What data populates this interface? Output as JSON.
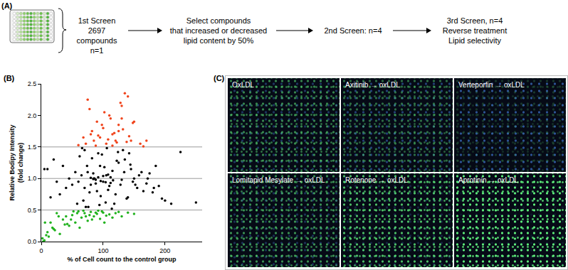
{
  "flowchart": {
    "label": "(A)",
    "steps": [
      [
        "1st Screen",
        "2697 compounds",
        "n=1"
      ],
      [
        "Select compounds",
        "that increased or decreased",
        "lipid content by 50%"
      ],
      [
        "2nd Screen: n=4"
      ],
      [
        "3rd Screen, n=4",
        "Reverse treatment",
        "Lipid selectivity"
      ]
    ]
  },
  "chart_data": {
    "panel_label": "(B)",
    "type": "scatter",
    "marker": "circle",
    "x_label": "% of Cell count to the control group",
    "y_label": "Relative Bodipy Intensity\n(fold change)",
    "xlim": [
      0,
      260
    ],
    "xticks": [
      0,
      100,
      200
    ],
    "ylim": [
      0,
      2.5
    ],
    "yticks": [
      {
        "value": 0,
        "label": "0.0"
      },
      0.5,
      {
        "value": 1,
        "label": "1.0"
      },
      1.5,
      {
        "value": 2,
        "label": "2.0"
      },
      2.5
    ],
    "reference_lines": [
      0.5,
      1,
      1.5
    ],
    "grid": false,
    "series": [
      {
        "color": "#000000",
        "x": [
          60,
          65,
          70,
          75,
          80,
          85,
          90,
          95,
          100,
          105,
          110,
          115,
          120,
          125,
          130,
          135,
          140,
          145,
          150,
          155,
          62,
          68,
          74,
          78,
          84,
          88,
          92,
          96,
          102,
          108,
          112,
          118,
          122,
          128,
          134,
          138,
          144,
          148,
          158,
          165,
          70,
          76,
          82,
          86,
          94,
          98,
          104,
          106,
          114,
          124,
          50,
          55,
          45,
          40,
          35,
          30,
          25,
          20,
          15,
          10,
          170,
          175,
          180,
          185,
          190,
          195,
          200,
          210,
          225,
          250,
          88,
          92,
          96,
          100,
          104,
          108,
          112,
          80,
          84,
          116,
          5,
          58,
          66,
          72,
          132,
          142,
          152,
          162,
          172,
          182
        ],
        "values": [
          0.95,
          1.05,
          0.85,
          1.1,
          0.9,
          1.0,
          0.8,
          1.2,
          0.95,
          1.05,
          0.88,
          1.12,
          0.75,
          1.25,
          0.98,
          1.3,
          0.7,
          1.15,
          1.0,
          0.85,
          1.35,
          0.65,
          1.2,
          0.78,
          1.08,
          0.92,
          1.4,
          0.72,
          1.18,
          0.82,
          1.02,
          0.6,
          1.28,
          0.9,
          1.1,
          0.68,
          1.22,
          0.95,
          1.05,
          0.8,
          1.45,
          0.55,
          1.32,
          1.0,
          0.58,
          1.38,
          0.62,
          1.48,
          0.52,
          1.42,
          0.9,
          1.1,
          1.0,
          0.85,
          1.2,
          0.75,
          0.95,
          1.3,
          0.7,
          1.15,
          0.92,
          1.08,
          0.78,
          1.2,
          0.88,
          0.68,
          0.65,
          0.6,
          1.42,
          0.62,
          0.98,
          1.02,
          0.96,
          1.04,
          0.94,
          1.06,
          0.93,
          1.01,
          0.99,
          0.97,
          1.15,
          0.6,
          1.48,
          0.55,
          1.45,
          1.4,
          0.9,
          1.1,
          1.0,
          0.85
        ]
      },
      {
        "color": "#f0441c",
        "x": [
          72,
          80,
          85,
          90,
          95,
          100,
          105,
          110,
          115,
          120,
          125,
          130,
          135,
          140,
          145,
          150,
          160,
          165,
          75,
          88,
          98,
          108,
          118,
          128,
          138,
          92,
          102,
          112,
          122,
          132,
          60,
          68,
          78,
          82,
          115,
          125,
          170,
          142,
          148,
          130
        ],
        "values": [
          1.55,
          1.7,
          1.6,
          1.9,
          1.65,
          1.8,
          1.55,
          2.0,
          1.7,
          1.6,
          1.75,
          2.15,
          2.35,
          2.3,
          1.6,
          1.9,
          1.55,
          1.51,
          2.25,
          1.52,
          1.85,
          1.62,
          1.72,
          2.2,
          1.58,
          1.68,
          2.05,
          1.95,
          1.57,
          1.78,
          1.53,
          1.65,
          2.1,
          1.75,
          1.52,
          1.85,
          1.6,
          1.67,
          1.88,
          1.95
        ]
      },
      {
        "color": "#22b21f",
        "x": [
          2,
          5,
          8,
          10,
          15,
          20,
          25,
          30,
          35,
          40,
          45,
          50,
          55,
          60,
          65,
          70,
          75,
          80,
          85,
          90,
          95,
          100,
          105,
          110,
          115,
          120,
          125,
          130,
          140,
          150,
          3,
          12,
          22,
          42,
          52,
          62,
          72,
          82,
          92,
          102,
          58,
          68,
          78,
          88,
          98,
          48,
          38,
          28,
          18,
          6
        ],
        "values": [
          0.05,
          0.02,
          0.1,
          0.15,
          0.3,
          0.2,
          0.45,
          0.12,
          0.35,
          0.4,
          0.25,
          0.42,
          0.3,
          0.48,
          0.38,
          0.45,
          0.33,
          0.47,
          0.4,
          0.44,
          0.36,
          0.46,
          0.41,
          0.43,
          0.38,
          0.45,
          0.47,
          0.4,
          0.46,
          0.44,
          0.0,
          0.08,
          0.18,
          0.28,
          0.48,
          0.22,
          0.4,
          0.35,
          0.49,
          0.3,
          0.45,
          0.49,
          0.42,
          0.46,
          0.48,
          0.35,
          0.27,
          0.4,
          0.22,
          0.3
        ]
      }
    ]
  },
  "micrographs": {
    "label": "(C)",
    "images": [
      "OxLDL",
      "Axitinib → oxLDL",
      "Verteporfin → oxLDL",
      "Lomitapid Mesylate → oxLDL",
      "Rotenone → oxLDL",
      "Aprotinin → oxLDL"
    ]
  }
}
